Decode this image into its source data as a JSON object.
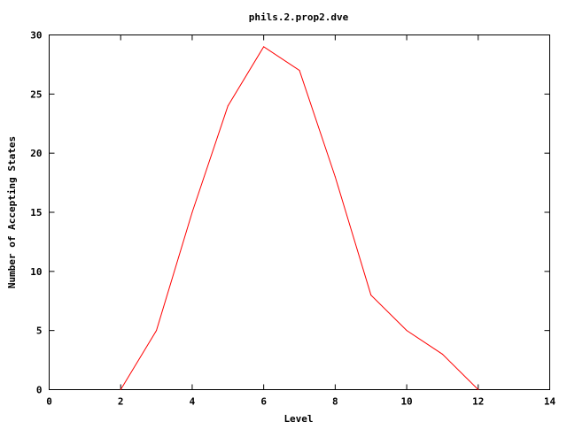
{
  "chart_data": {
    "type": "line",
    "title": "phils.2.prop2.dve",
    "xlabel": "Level",
    "ylabel": "Number of Accepting States",
    "xlim": [
      0,
      14
    ],
    "ylim": [
      0,
      30
    ],
    "xticks": [
      0,
      2,
      4,
      6,
      8,
      10,
      12,
      14
    ],
    "yticks": [
      0,
      5,
      10,
      15,
      20,
      25,
      30
    ],
    "grid": false,
    "series": [
      {
        "color": "#ff0000",
        "x": [
          2,
          3,
          4,
          5,
          6,
          7,
          8,
          9,
          10,
          11,
          12
        ],
        "y": [
          0,
          5,
          15,
          24,
          29,
          27,
          18,
          8,
          5,
          3,
          0
        ]
      }
    ]
  }
}
